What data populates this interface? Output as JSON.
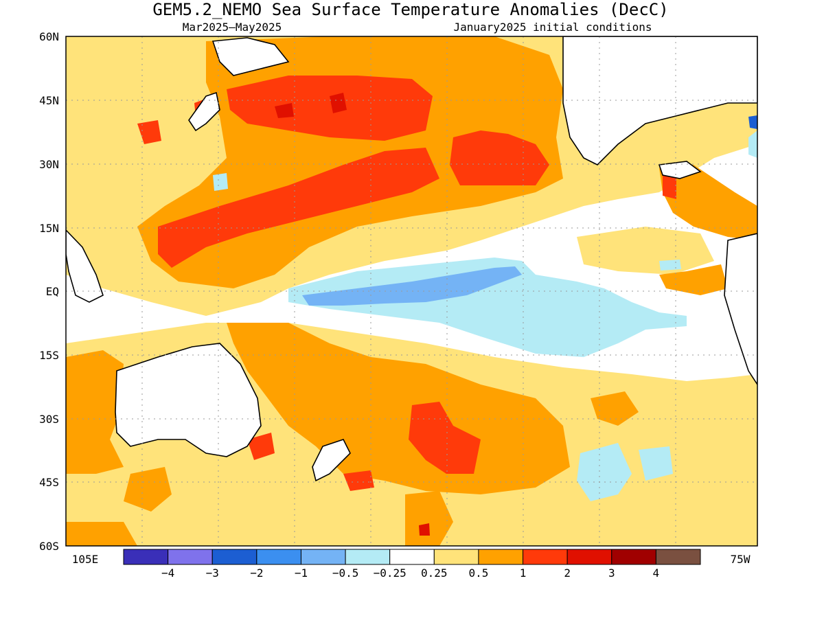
{
  "title": "GEM5.2_NEMO Sea Surface Temperature Anomalies (DecC)",
  "subtitle_left": "Mar2025–May2025",
  "subtitle_right": "January2025 initial conditions",
  "lat_labels": [
    "60N",
    "45N",
    "30N",
    "15N",
    "EQ",
    "15S",
    "30S",
    "45S",
    "60S"
  ],
  "lon_labels": {
    "left": "105E",
    "right": "75W"
  },
  "colorbar": {
    "colors": [
      "#3a2fb8",
      "#7f72ec",
      "#1c5ed2",
      "#3b8ff0",
      "#74b3f5",
      "#b4ebf5",
      "#ffffff",
      "#ffe37a",
      "#ffa100",
      "#ff3a0a",
      "#e01000",
      "#a00000",
      "#7a5040"
    ],
    "labels": [
      "−4",
      "−3",
      "−2",
      "−1",
      "−0.5",
      "−0.25",
      "0.25",
      "0.5",
      "1",
      "2",
      "3",
      "4"
    ]
  },
  "palette": {
    "land": "#ffffff",
    "coast": "#000000",
    "grid": "#9a9a9a"
  }
}
